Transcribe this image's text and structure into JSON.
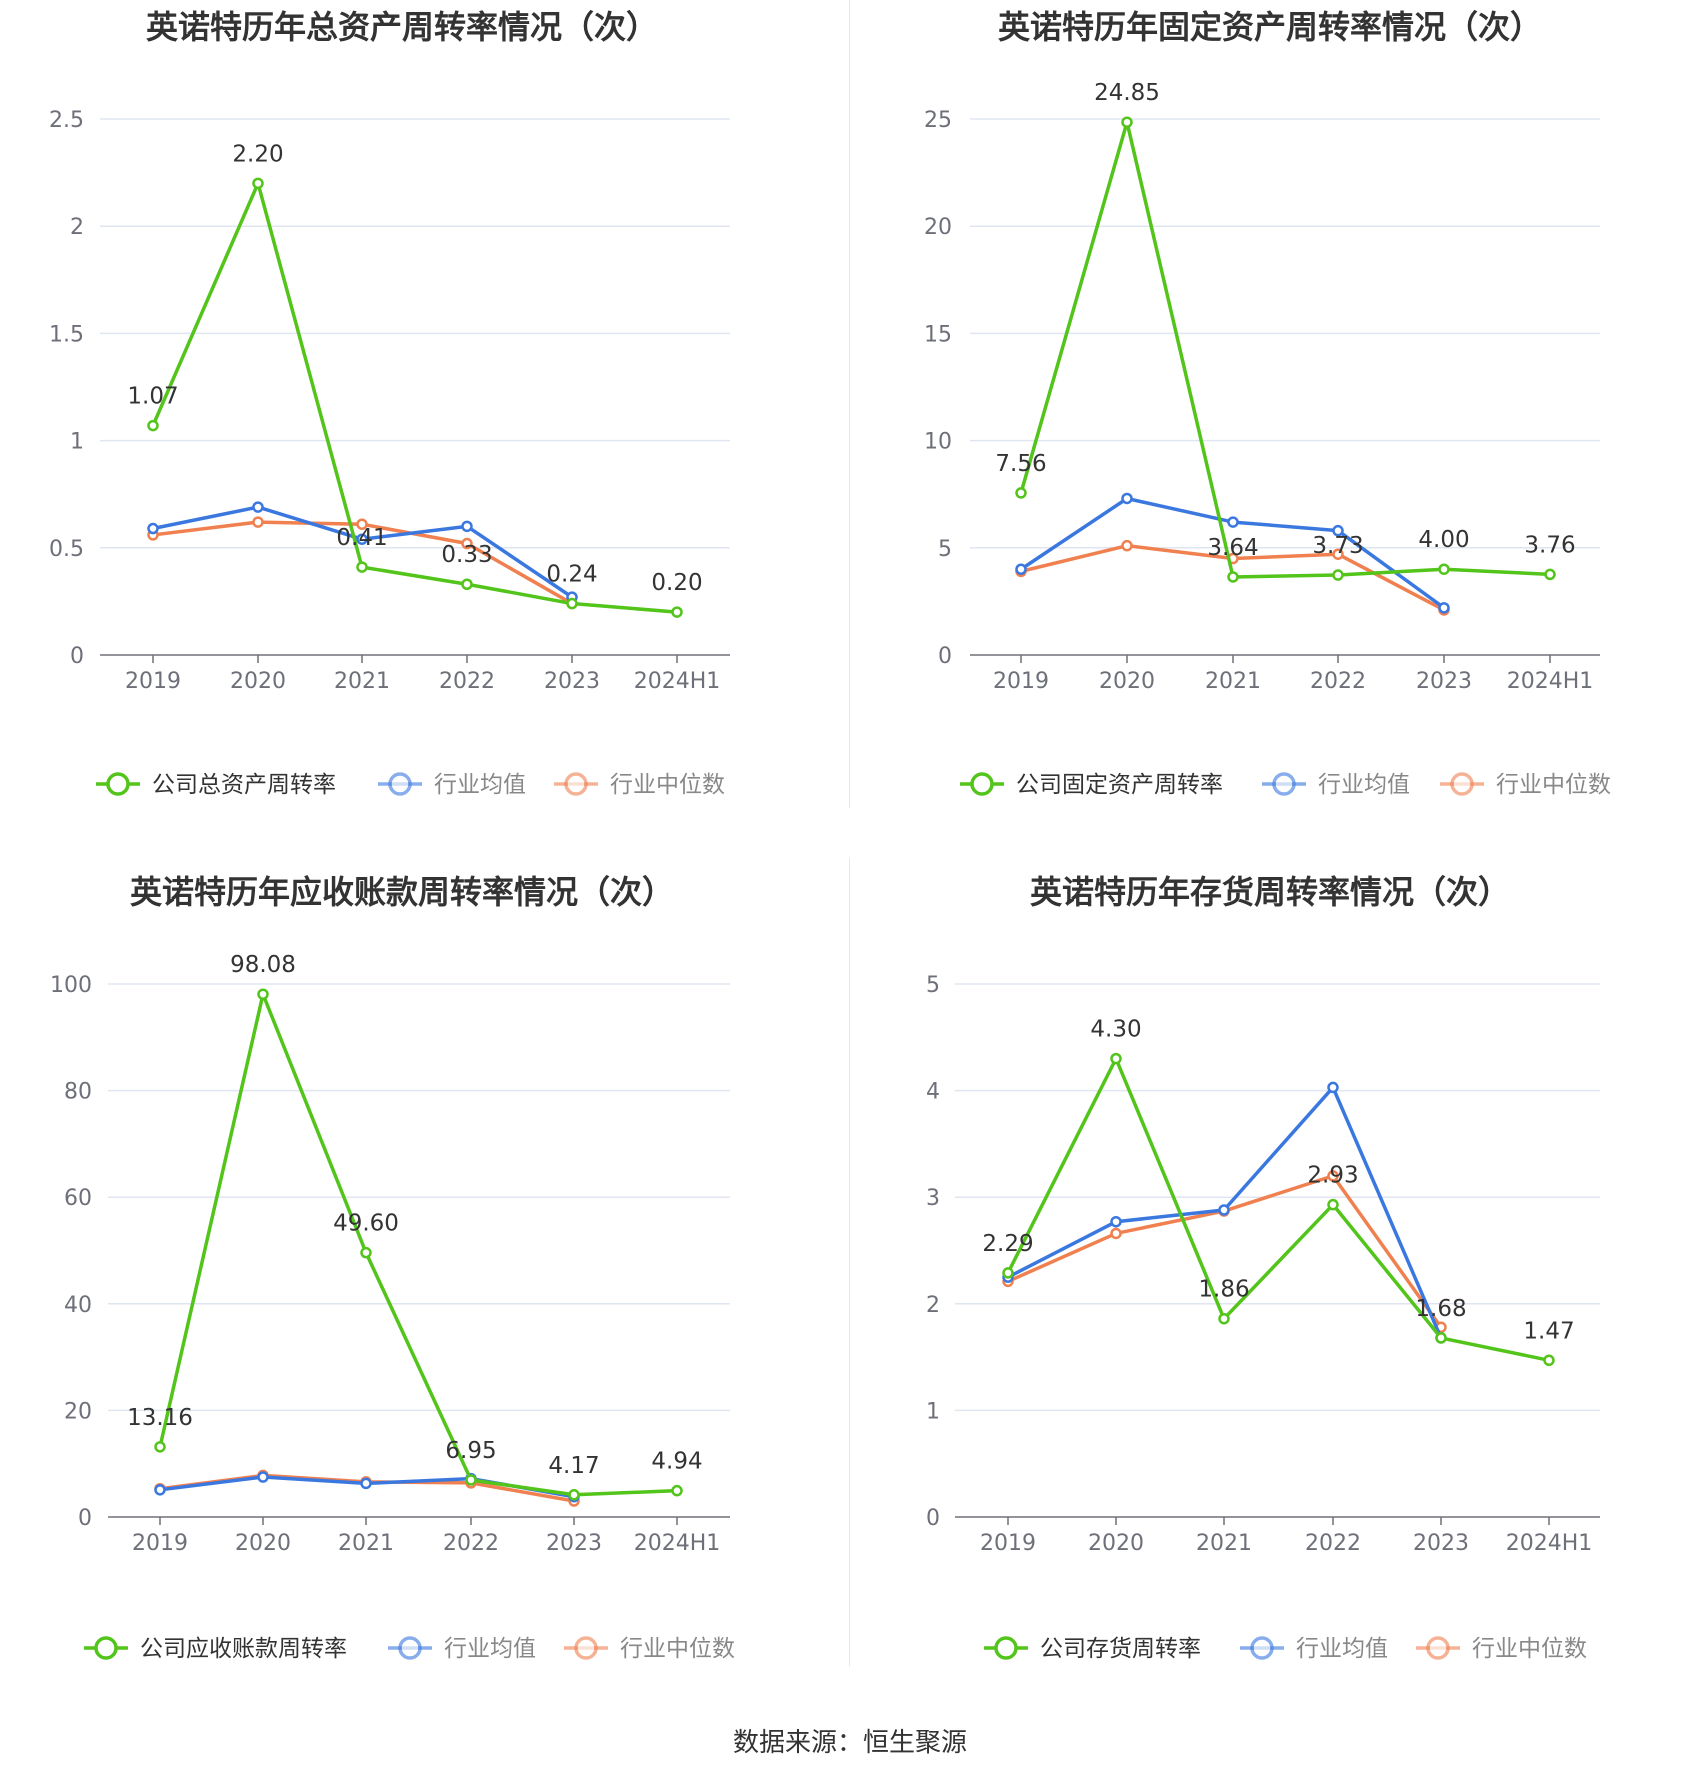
{
  "source_text": "数据来源：恒生聚源",
  "colors": {
    "company": "#52c41a",
    "average": "#3a78e0",
    "median": "#f0804f",
    "grid": "#e0e6f1",
    "axis": "#6e7079",
    "text": "#333333"
  },
  "chart_data": [
    {
      "type": "line",
      "title": "英诺特历年总资产周转率情况（次）",
      "categories": [
        "2019",
        "2020",
        "2021",
        "2022",
        "2023",
        "2024H1"
      ],
      "ylim": [
        0,
        2.5
      ],
      "yticks": [
        0,
        0.5,
        1,
        1.5,
        2,
        2.5
      ],
      "ytick_labels": [
        "0",
        "0.5",
        "1",
        "1.5",
        "2",
        "2.5"
      ],
      "grid": true,
      "legend_position": "bottom",
      "series": [
        {
          "name": "公司总资产周转率",
          "key": "company",
          "values": [
            1.07,
            2.2,
            0.41,
            0.33,
            0.24,
            0.2
          ],
          "labels": [
            "1.07",
            "2.20",
            "0.41",
            "0.33",
            "0.24",
            "0.20"
          ]
        },
        {
          "name": "行业均值",
          "key": "average",
          "values": [
            0.59,
            0.69,
            0.54,
            0.6,
            0.27,
            null
          ]
        },
        {
          "name": "行业中位数",
          "key": "median",
          "values": [
            0.56,
            0.62,
            0.61,
            0.52,
            0.24,
            null
          ]
        }
      ]
    },
    {
      "type": "line",
      "title": "英诺特历年固定资产周转率情况（次）",
      "categories": [
        "2019",
        "2020",
        "2021",
        "2022",
        "2023",
        "2024H1"
      ],
      "ylim": [
        0,
        25
      ],
      "yticks": [
        0,
        5,
        10,
        15,
        20,
        25
      ],
      "ytick_labels": [
        "0",
        "5",
        "10",
        "15",
        "20",
        "25"
      ],
      "grid": true,
      "legend_position": "bottom",
      "series": [
        {
          "name": "公司固定资产周转率",
          "key": "company",
          "values": [
            7.56,
            24.85,
            3.64,
            3.73,
            4.0,
            3.76
          ],
          "labels": [
            "7.56",
            "24.85",
            "3.64",
            "3.73",
            "4.00",
            "3.76"
          ]
        },
        {
          "name": "行业均值",
          "key": "average",
          "values": [
            4.0,
            7.3,
            6.2,
            5.8,
            2.2,
            null
          ]
        },
        {
          "name": "行业中位数",
          "key": "median",
          "values": [
            3.9,
            5.1,
            4.5,
            4.7,
            2.1,
            null
          ]
        }
      ]
    },
    {
      "type": "line",
      "title": "英诺特历年应收账款周转率情况（次）",
      "categories": [
        "2019",
        "2020",
        "2021",
        "2022",
        "2023",
        "2024H1"
      ],
      "ylim": [
        0,
        100
      ],
      "yticks": [
        0,
        20,
        40,
        60,
        80,
        100
      ],
      "ytick_labels": [
        "0",
        "20",
        "40",
        "60",
        "80",
        "100"
      ],
      "grid": true,
      "legend_position": "bottom",
      "series": [
        {
          "name": "公司应收账款周转率",
          "key": "company",
          "values": [
            13.16,
            98.08,
            49.6,
            6.95,
            4.17,
            4.94
          ],
          "labels": [
            "13.16",
            "98.08",
            "49.60",
            "6.95",
            "4.17",
            "4.94"
          ]
        },
        {
          "name": "行业均值",
          "key": "average",
          "values": [
            5.1,
            7.5,
            6.3,
            7.2,
            3.8,
            null
          ]
        },
        {
          "name": "行业中位数",
          "key": "median",
          "values": [
            5.3,
            7.8,
            6.6,
            6.4,
            3.0,
            null
          ]
        }
      ]
    },
    {
      "type": "line",
      "title": "英诺特历年存货周转率情况（次）",
      "categories": [
        "2019",
        "2020",
        "2021",
        "2022",
        "2023",
        "2024H1"
      ],
      "ylim": [
        0,
        5
      ],
      "yticks": [
        0,
        1,
        2,
        3,
        4,
        5
      ],
      "ytick_labels": [
        "0",
        "1",
        "2",
        "3",
        "4",
        "5"
      ],
      "grid": true,
      "legend_position": "bottom",
      "series": [
        {
          "name": "公司存货周转率",
          "key": "company",
          "values": [
            2.29,
            4.3,
            1.86,
            2.93,
            1.68,
            1.47
          ],
          "labels": [
            "2.29",
            "4.30",
            "1.86",
            "2.93",
            "1.68",
            "1.47"
          ]
        },
        {
          "name": "行业均值",
          "key": "average",
          "values": [
            2.25,
            2.77,
            2.88,
            4.03,
            1.68,
            null
          ]
        },
        {
          "name": "行业中位数",
          "key": "median",
          "values": [
            2.21,
            2.66,
            2.87,
            3.2,
            1.78,
            null
          ]
        }
      ]
    }
  ]
}
